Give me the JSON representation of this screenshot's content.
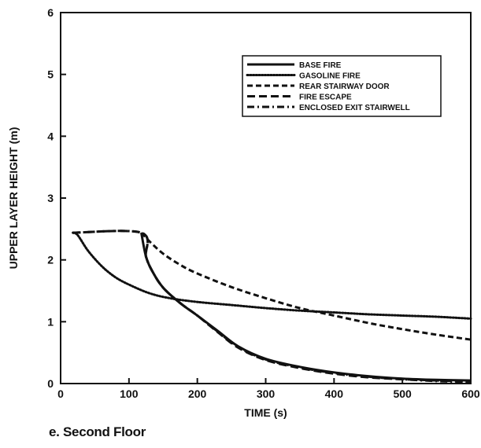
{
  "caption": "e. Second Floor",
  "chart_data": {
    "type": "line",
    "title": "",
    "xlabel": "TIME (s)",
    "ylabel": "UPPER LAYER HEIGHT (m)",
    "xlim": [
      0,
      600
    ],
    "ylim": [
      0,
      6
    ],
    "xticks": [
      0,
      100,
      200,
      300,
      400,
      500,
      600
    ],
    "yticks": [
      0,
      1,
      2,
      3,
      4,
      5,
      6
    ],
    "grid": false,
    "legend_position": "top-right",
    "series": [
      {
        "name": "BASE FIRE",
        "style": "solid",
        "x": [
          118,
          125,
          135,
          150,
          175,
          200,
          230,
          260,
          300,
          350,
          400,
          450,
          500,
          550,
          600
        ],
        "y": [
          2.44,
          2.05,
          1.8,
          1.55,
          1.3,
          1.1,
          0.85,
          0.6,
          0.4,
          0.27,
          0.18,
          0.12,
          0.08,
          0.06,
          0.05
        ]
      },
      {
        "name": "GASOLINE FIRE",
        "style": "dotted",
        "x": [
          18,
          25,
          40,
          60,
          80,
          100,
          130,
          160,
          200,
          250,
          300,
          350,
          400,
          450,
          500,
          550,
          600
        ],
        "y": [
          2.44,
          2.4,
          2.15,
          1.9,
          1.72,
          1.6,
          1.46,
          1.38,
          1.32,
          1.27,
          1.22,
          1.18,
          1.15,
          1.12,
          1.1,
          1.08,
          1.05
        ]
      },
      {
        "name": "REAR STAIRWAY DOOR",
        "style": "dashed",
        "x": [
          118,
          130,
          150,
          175,
          200,
          250,
          300,
          350,
          400,
          450,
          500,
          550,
          600
        ],
        "y": [
          2.44,
          2.3,
          2.1,
          1.92,
          1.78,
          1.56,
          1.38,
          1.22,
          1.1,
          0.98,
          0.88,
          0.79,
          0.71
        ]
      },
      {
        "name": "FIRE ESCAPE",
        "style": "longdash",
        "x": [
          18,
          118,
          125,
          135,
          150,
          175,
          200,
          230,
          260,
          300,
          350,
          400,
          450,
          500,
          550,
          600
        ],
        "y": [
          2.44,
          2.44,
          2.05,
          1.8,
          1.55,
          1.3,
          1.1,
          0.83,
          0.58,
          0.38,
          0.25,
          0.16,
          0.1,
          0.07,
          0.05,
          0.03
        ]
      },
      {
        "name": "ENCLOSED EXIT STAIRWELL",
        "style": "dashdot",
        "x": [
          18,
          118,
          125,
          135,
          150,
          175,
          200,
          230,
          260,
          300,
          350,
          400,
          450,
          500,
          550,
          600
        ],
        "y": [
          2.44,
          2.44,
          2.05,
          1.8,
          1.55,
          1.3,
          1.1,
          0.84,
          0.59,
          0.39,
          0.26,
          0.17,
          0.11,
          0.07,
          0.04,
          0.02
        ]
      }
    ]
  }
}
